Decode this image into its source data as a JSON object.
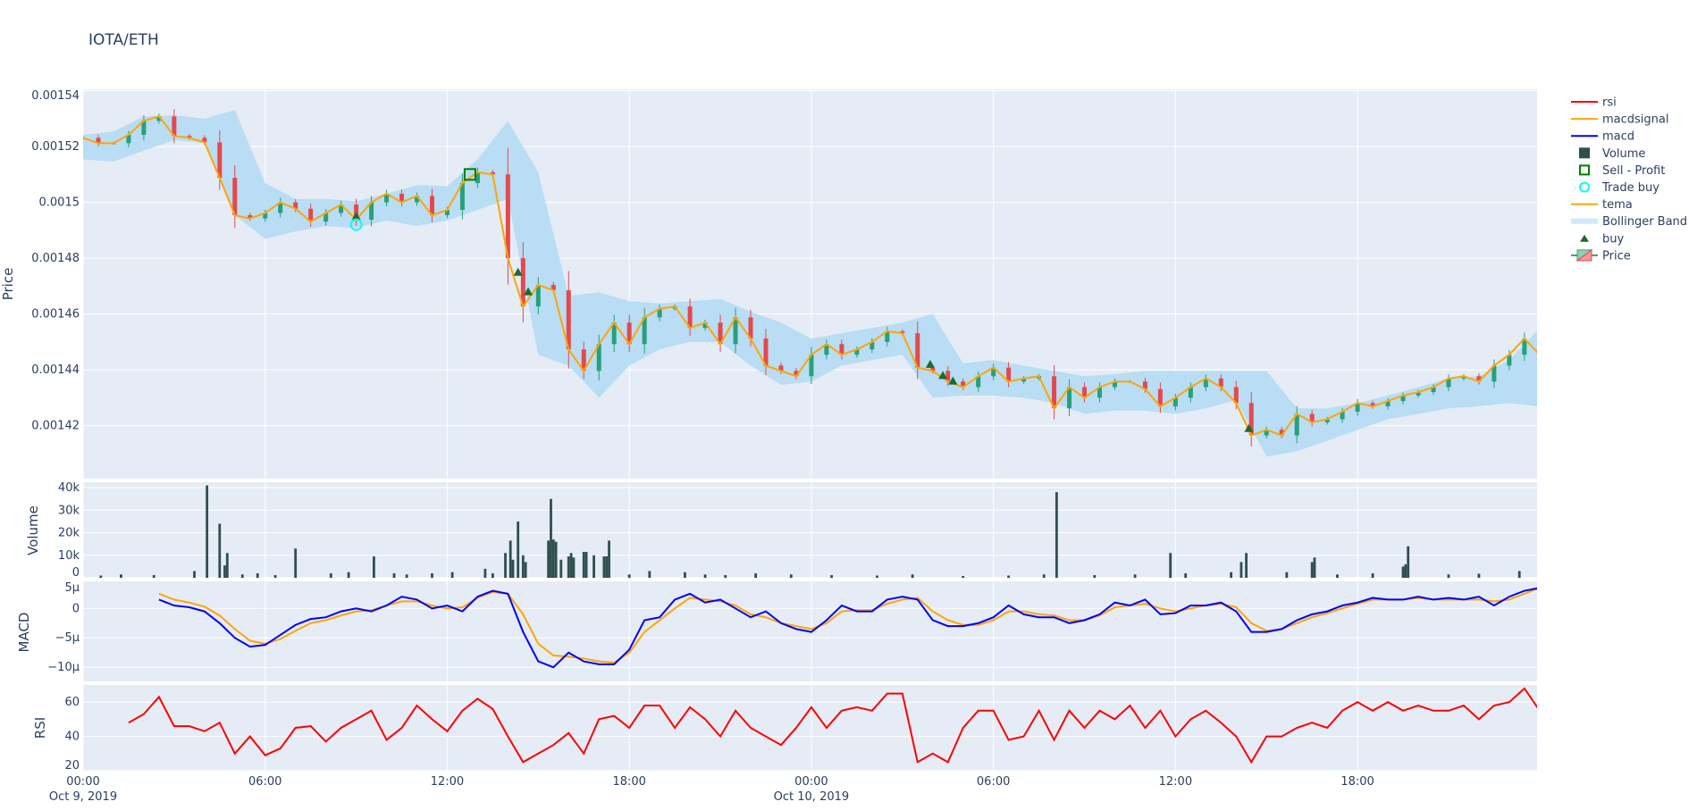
{
  "title": "IOTA/ETH",
  "colors": {
    "background": "#e5ecf6",
    "increasing": "#26a17b",
    "decreasing": "#e5484d",
    "tema": "#ffa500",
    "bollinger": "#b3dcf5",
    "volume": "#2f4f4f",
    "macd": "#0000ff",
    "macdsignal": "#ffa500",
    "rsi": "#ff0000",
    "buy": "#1a6b2e",
    "sell_profit": "#008000",
    "trade_buy": "#00ffff"
  },
  "legend": {
    "placement": "right",
    "items": [
      {
        "label": "rsi",
        "icon": "line",
        "color": "#ff0000"
      },
      {
        "label": "macdsignal",
        "icon": "line",
        "color": "#ffa500"
      },
      {
        "label": "macd",
        "icon": "line",
        "color": "#0000ff"
      },
      {
        "label": "Volume",
        "icon": "square-filled",
        "color": "#2f4f4f"
      },
      {
        "label": "Sell - Profit",
        "icon": "square-open",
        "color": "#008000"
      },
      {
        "label": "Trade buy",
        "icon": "circle-open",
        "color": "#00ffff"
      },
      {
        "label": "tema",
        "icon": "line",
        "color": "#ffa500"
      },
      {
        "label": "Bollinger Band",
        "icon": "band",
        "color": "#b3dcf5"
      },
      {
        "label": "buy",
        "icon": "triangle-up",
        "color": "#1a6b2e"
      },
      {
        "label": "Price",
        "icon": "candlestick",
        "color": "#26a17b"
      }
    ]
  },
  "chart_data": {
    "type": "candlestick",
    "x_axis": {
      "range": [
        "2019-10-09 00:00",
        "2019-10-10 23:55"
      ],
      "ticks": [
        {
          "time": "2019-10-09 00:00",
          "label": "00:00",
          "sublabel": "Oct 9, 2019"
        },
        {
          "time": "2019-10-09 06:00",
          "label": "06:00"
        },
        {
          "time": "2019-10-09 12:00",
          "label": "12:00"
        },
        {
          "time": "2019-10-09 18:00",
          "label": "18:00"
        },
        {
          "time": "2019-10-10 00:00",
          "label": "00:00",
          "sublabel": "Oct 10, 2019"
        },
        {
          "time": "2019-10-10 06:00",
          "label": "06:00"
        },
        {
          "time": "2019-10-10 12:00",
          "label": "12:00"
        },
        {
          "time": "2019-10-10 18:00",
          "label": "18:00"
        }
      ],
      "grid": true
    },
    "panels": {
      "price": {
        "ylabel": "Price",
        "ylim": [
          0.001401,
          0.0015405
        ],
        "ticks": [
          [
            0.00154,
            "0.00154"
          ],
          [
            0.00152,
            "0.00152"
          ],
          [
            0.0015,
            "0.0015"
          ],
          [
            0.00148,
            "0.00148"
          ],
          [
            0.00146,
            "0.00146"
          ],
          [
            0.00144,
            "0.00144"
          ],
          [
            0.00142,
            "0.00142"
          ]
        ]
      },
      "volume": {
        "ylabel": "Volume",
        "ylim": [
          0,
          42400
        ],
        "ticks": [
          [
            0,
            "0"
          ],
          [
            10000,
            "10k"
          ],
          [
            20000,
            "20k"
          ],
          [
            30000,
            "30k"
          ],
          [
            40000,
            "40k"
          ]
        ]
      },
      "macd": {
        "ylabel": "MACD",
        "ylim": [
          -1.24e-05,
          4.6e-06
        ],
        "ticks": [
          [
            5e-06,
            "5μ"
          ],
          [
            0,
            "0"
          ],
          [
            -5e-06,
            "−5μ"
          ],
          [
            -1e-05,
            "−10μ"
          ]
        ]
      },
      "rsi": {
        "ylabel": "RSI",
        "ylim": [
          20,
          70
        ],
        "ticks": [
          [
            20,
            "20"
          ],
          [
            40,
            "40"
          ],
          [
            60,
            "60"
          ]
        ]
      }
    },
    "series_start": "2019-10-09 00:00",
    "interval_minutes": 30,
    "close": [
      0.0015231,
      0.0015212,
      0.0015212,
      0.0015242,
      0.0015292,
      0.0015308,
      0.0015238,
      0.0015231,
      0.0015215,
      0.0015088,
      0.0014954,
      0.0014942,
      0.0014962,
      0.0015,
      0.0014977,
      0.0014931,
      0.0014962,
      0.0014992,
      0.0014938,
      0.0015,
      0.0015031,
      0.0015,
      0.0015023,
      0.0014954,
      0.0014973,
      0.0015069,
      0.0015108,
      0.00151,
      0.00148,
      0.0014627,
      0.0014704,
      0.0014685,
      0.0014473,
      0.0014396,
      0.0014492,
      0.0014569,
      0.0014492,
      0.0014588,
      0.0014619,
      0.0014627,
      0.001455,
      0.0014569,
      0.0014492,
      0.0014588,
      0.0014512,
      0.0014415,
      0.0014396,
      0.0014377,
      0.0014454,
      0.0014492,
      0.0014454,
      0.0014473,
      0.00145,
      0.0014538,
      0.0014531,
      0.0014408,
      0.0014396,
      0.0014358,
      0.0014338,
      0.0014377,
      0.0014408,
      0.0014358,
      0.0014369,
      0.0014377,
      0.0014262,
      0.0014338,
      0.00143,
      0.0014338,
      0.0014358,
      0.0014358,
      0.0014331,
      0.0014269,
      0.00143,
      0.0014338,
      0.0014369,
      0.0014338,
      0.0014281,
      0.0014165,
      0.0014185,
      0.0014165,
      0.0014242,
      0.0014212,
      0.0014223,
      0.001425,
      0.0014281,
      0.0014269,
      0.0014288,
      0.0014308,
      0.001432,
      0.0014338,
      0.0014369,
      0.0014377,
      0.0014358,
      0.0014415,
      0.0014454,
      0.0014512,
      0.0014454
    ],
    "tema_label": "tema",
    "bollinger": {
      "interval_minutes": 60,
      "upper": [
        0.0015242,
        0.0015254,
        0.0015308,
        0.0015312,
        0.00153,
        0.0015331,
        0.0015069,
        0.0015012,
        0.0015012,
        0.0015004,
        0.0015031,
        0.0015062,
        0.0015058,
        0.0015154,
        0.0015292,
        0.0015108,
        0.0014665,
        0.0014677,
        0.0014646,
        0.0014638,
        0.0014646,
        0.0014654,
        0.0014608,
        0.0014569,
        0.0014512,
        0.0014531,
        0.001455,
        0.0014569,
        0.00146,
        0.0014423,
        0.0014435,
        0.0014415,
        0.0014396,
        0.0014377,
        0.0014385,
        0.0014396,
        0.0014396,
        0.0014396,
        0.0014396,
        0.0014396,
        0.0014262,
        0.0014262,
        0.0014281,
        0.0014308,
        0.0014338,
        0.0014369,
        0.0014377,
        0.0014435,
        0.001455
      ],
      "lower": [
        0.0015154,
        0.0015146,
        0.0015185,
        0.0015223,
        0.0015212,
        0.0014954,
        0.0014869,
        0.0014896,
        0.0014915,
        0.0014908,
        0.0014935,
        0.0014915,
        0.0014935,
        0.0014973,
        0.0015012,
        0.0014454,
        0.0014415,
        0.00143,
        0.0014415,
        0.0014473,
        0.00145,
        0.00145,
        0.0014415,
        0.0014346,
        0.0014358,
        0.0014415,
        0.0014435,
        0.0014454,
        0.00143,
        0.0014308,
        0.0014308,
        0.00143,
        0.0014281,
        0.0014242,
        0.0014254,
        0.0014254,
        0.0014242,
        0.0014262,
        0.0014292,
        0.0014089,
        0.0014108,
        0.0014146,
        0.0014185,
        0.0014223,
        0.0014242,
        0.0014262,
        0.0014269,
        0.0014281,
        0.0014269
      ]
    },
    "markers": {
      "buy": [
        [
          "2019-10-09 09:00",
          0.001495
        ],
        [
          "2019-10-09 14:20",
          0.001475
        ],
        [
          "2019-10-09 14:40",
          0.001468
        ],
        [
          "2019-10-10 03:55",
          0.001442
        ],
        [
          "2019-10-10 04:20",
          0.001438
        ],
        [
          "2019-10-10 04:40",
          0.001436
        ],
        [
          "2019-10-10 14:25",
          0.001419
        ]
      ],
      "sell_profit": [
        [
          "2019-10-09 12:45",
          0.00151
        ]
      ],
      "trade_buy": [
        [
          "2019-10-09 09:00",
          0.001492
        ]
      ]
    },
    "volume": [
      [
        "2019-10-09 04:05",
        41000
      ],
      [
        "2019-10-09 04:30",
        24000
      ],
      [
        "2019-10-09 04:40",
        5500
      ],
      [
        "2019-10-09 04:45",
        11000
      ],
      [
        "2019-10-09 07:00",
        13000
      ],
      [
        "2019-10-09 09:35",
        9500
      ],
      [
        "2019-10-09 13:15",
        4000
      ],
      [
        "2019-10-09 13:55",
        11000
      ],
      [
        "2019-10-09 14:05",
        16500
      ],
      [
        "2019-10-09 14:10",
        8000
      ],
      [
        "2019-10-09 14:20",
        25000
      ],
      [
        "2019-10-09 14:30",
        10000
      ],
      [
        "2019-10-09 14:35",
        7000
      ],
      [
        "2019-10-09 15:20",
        16500
      ],
      [
        "2019-10-09 15:25",
        35000
      ],
      [
        "2019-10-09 15:30",
        17000
      ],
      [
        "2019-10-09 15:35",
        16000
      ],
      [
        "2019-10-09 15:45",
        8000
      ],
      [
        "2019-10-09 16:00",
        9500
      ],
      [
        "2019-10-09 16:05",
        11000
      ],
      [
        "2019-10-09 16:10",
        9000
      ],
      [
        "2019-10-09 16:30",
        11500
      ],
      [
        "2019-10-09 16:35",
        11500
      ],
      [
        "2019-10-09 16:50",
        10000
      ],
      [
        "2019-10-09 17:10",
        9500
      ],
      [
        "2019-10-09 17:15",
        9500
      ],
      [
        "2019-10-09 17:20",
        16500
      ],
      [
        "2019-10-10 08:05",
        38000
      ],
      [
        "2019-10-10 11:50",
        11000
      ],
      [
        "2019-10-10 14:10",
        7000
      ],
      [
        "2019-10-10 14:20",
        11000
      ],
      [
        "2019-10-10 16:30",
        7000
      ],
      [
        "2019-10-10 16:35",
        9000
      ],
      [
        "2019-10-10 19:30",
        5000
      ],
      [
        "2019-10-10 19:35",
        6000
      ],
      [
        "2019-10-10 19:40",
        14000
      ],
      [
        "2019-10-10 23:20",
        3000
      ],
      [
        "2019-10-09 00:35",
        1000
      ],
      [
        "2019-10-09 01:15",
        1500
      ],
      [
        "2019-10-09 02:20",
        1200
      ],
      [
        "2019-10-09 03:40",
        3000
      ],
      [
        "2019-10-09 05:15",
        1500
      ],
      [
        "2019-10-09 05:45",
        2000
      ],
      [
        "2019-10-09 06:20",
        1200
      ],
      [
        "2019-10-09 08:10",
        2000
      ],
      [
        "2019-10-09 08:45",
        2500
      ],
      [
        "2019-10-09 10:15",
        2000
      ],
      [
        "2019-10-09 10:40",
        1500
      ],
      [
        "2019-10-09 11:30",
        2000
      ],
      [
        "2019-10-09 12:10",
        2500
      ],
      [
        "2019-10-09 13:30",
        2000
      ],
      [
        "2019-10-09 18:00",
        1500
      ],
      [
        "2019-10-09 18:40",
        3000
      ],
      [
        "2019-10-09 19:50",
        2500
      ],
      [
        "2019-10-09 20:30",
        1500
      ],
      [
        "2019-10-09 21:10",
        1200
      ],
      [
        "2019-10-09 22:10",
        2000
      ],
      [
        "2019-10-09 23:20",
        1500
      ],
      [
        "2019-10-10 00:40",
        1200
      ],
      [
        "2019-10-10 02:10",
        1000
      ],
      [
        "2019-10-10 03:20",
        1500
      ],
      [
        "2019-10-10 05:00",
        800
      ],
      [
        "2019-10-10 06:30",
        1000
      ],
      [
        "2019-10-10 07:40",
        1500
      ],
      [
        "2019-10-10 09:20",
        1200
      ],
      [
        "2019-10-10 10:40",
        1500
      ],
      [
        "2019-10-10 12:20",
        2000
      ],
      [
        "2019-10-10 13:50",
        2500
      ],
      [
        "2019-10-10 15:40",
        2500
      ],
      [
        "2019-10-10 17:20",
        1500
      ],
      [
        "2019-10-10 18:30",
        2000
      ],
      [
        "2019-10-10 21:00",
        1500
      ],
      [
        "2019-10-10 22:00",
        1800
      ]
    ],
    "macd": [
      null,
      null,
      null,
      null,
      null,
      1.5e-06,
      5e-07,
      2e-07,
      -5e-07,
      -2.5e-06,
      -5e-06,
      -6.5e-06,
      -6.2e-06,
      -4.5e-06,
      -2.8e-06,
      -1.8e-06,
      -1.5e-06,
      -5e-07,
      0,
      -5e-07,
      5e-07,
      2e-06,
      1.5e-06,
      0,
      5e-07,
      -5e-07,
      2e-06,
      3e-06,
      2.5e-06,
      -4e-06,
      -9e-06,
      -1e-05,
      -7.5e-06,
      -9e-06,
      -9.5e-06,
      -9.5e-06,
      -7e-06,
      -2e-06,
      -1.5e-06,
      1.5e-06,
      2.5e-06,
      1e-06,
      1.5e-06,
      0,
      -1.5e-06,
      -5e-07,
      -2.5e-06,
      -3.5e-06,
      -4e-06,
      -2e-06,
      5e-07,
      -5e-07,
      -5e-07,
      1.5e-06,
      2e-06,
      1.5e-06,
      -2e-06,
      -3e-06,
      -3e-06,
      -2.5e-06,
      -1.5e-06,
      5e-07,
      -1e-06,
      -1.5e-06,
      -1.5e-06,
      -2.5e-06,
      -2e-06,
      -1e-06,
      1e-06,
      5e-07,
      1.5e-06,
      -1e-06,
      -8e-07,
      5e-07,
      5e-07,
      1e-06,
      -5e-07,
      -4e-06,
      -4e-06,
      -3.5e-06,
      -2e-06,
      -1e-06,
      -5e-07,
      5e-07,
      1e-06,
      1.8e-06,
      1.5e-06,
      1.5e-06,
      2e-06,
      1.5e-06,
      1.8e-06,
      1.5e-06,
      2e-06,
      5e-07,
      2e-06,
      3e-06,
      3.5e-06
    ],
    "macdsignal": [
      null,
      null,
      null,
      null,
      null,
      2.5e-06,
      1.5e-06,
      1e-06,
      3e-07,
      -1.2e-06,
      -3.5e-06,
      -5.5e-06,
      -6e-06,
      -5.2e-06,
      -3.8e-06,
      -2.5e-06,
      -2e-06,
      -1.2e-06,
      -5e-07,
      -3e-07,
      5e-07,
      1.2e-06,
      1.2e-06,
      5e-07,
      0,
      2e-07,
      1.8e-06,
      2.8e-06,
      2.5e-06,
      -1e-06,
      -6e-06,
      -8e-06,
      -8.2e-06,
      -8.5e-06,
      -9e-06,
      -9.2e-06,
      -7.5e-06,
      -4e-06,
      -2e-06,
      0,
      1.8e-06,
      1.5e-06,
      1.2e-06,
      5e-07,
      -1e-06,
      -1.5e-06,
      -2.5e-06,
      -3e-06,
      -3.5e-06,
      -2.5e-06,
      -5e-07,
      -3e-07,
      -3e-07,
      8e-07,
      1.5e-06,
      1.8e-06,
      -5e-07,
      -2e-06,
      -2.8e-06,
      -2.8e-06,
      -2e-06,
      -5e-07,
      -5e-07,
      -1e-06,
      -1.2e-06,
      -2e-06,
      -2e-06,
      -1.2e-06,
      2e-07,
      5e-07,
      8e-07,
      0,
      -5e-07,
      0,
      5e-07,
      8e-07,
      2e-07,
      -2.5e-06,
      -3.8e-06,
      -3.5e-06,
      -2.5e-06,
      -1.5e-06,
      -8e-07,
      0,
      8e-07,
      1.5e-06,
      1.5e-06,
      1.5e-06,
      1.8e-06,
      1.5e-06,
      1.5e-06,
      1.5e-06,
      1.5e-06,
      1.2e-06,
      1.5e-06,
      2.5e-06,
      3.5e-06
    ],
    "rsi": [
      null,
      null,
      null,
      48,
      53,
      63,
      46,
      46,
      43,
      48,
      30,
      40,
      29,
      33,
      45,
      46,
      37,
      45,
      50,
      55,
      38,
      45,
      58,
      50,
      43,
      55,
      62,
      56,
      40,
      25,
      30,
      35,
      42,
      30,
      50,
      52,
      45,
      58,
      58,
      45,
      57,
      50,
      40,
      55,
      45,
      40,
      35,
      45,
      57,
      45,
      55,
      57,
      55,
      65,
      65,
      25,
      30,
      25,
      45,
      55,
      55,
      38,
      40,
      55,
      38,
      55,
      45,
      55,
      50,
      58,
      45,
      55,
      40,
      50,
      55,
      48,
      40,
      25,
      40,
      40,
      45,
      48,
      45,
      55,
      60,
      55,
      60,
      55,
      58,
      55,
      55,
      58,
      50,
      58,
      60,
      68,
      55
    ]
  }
}
